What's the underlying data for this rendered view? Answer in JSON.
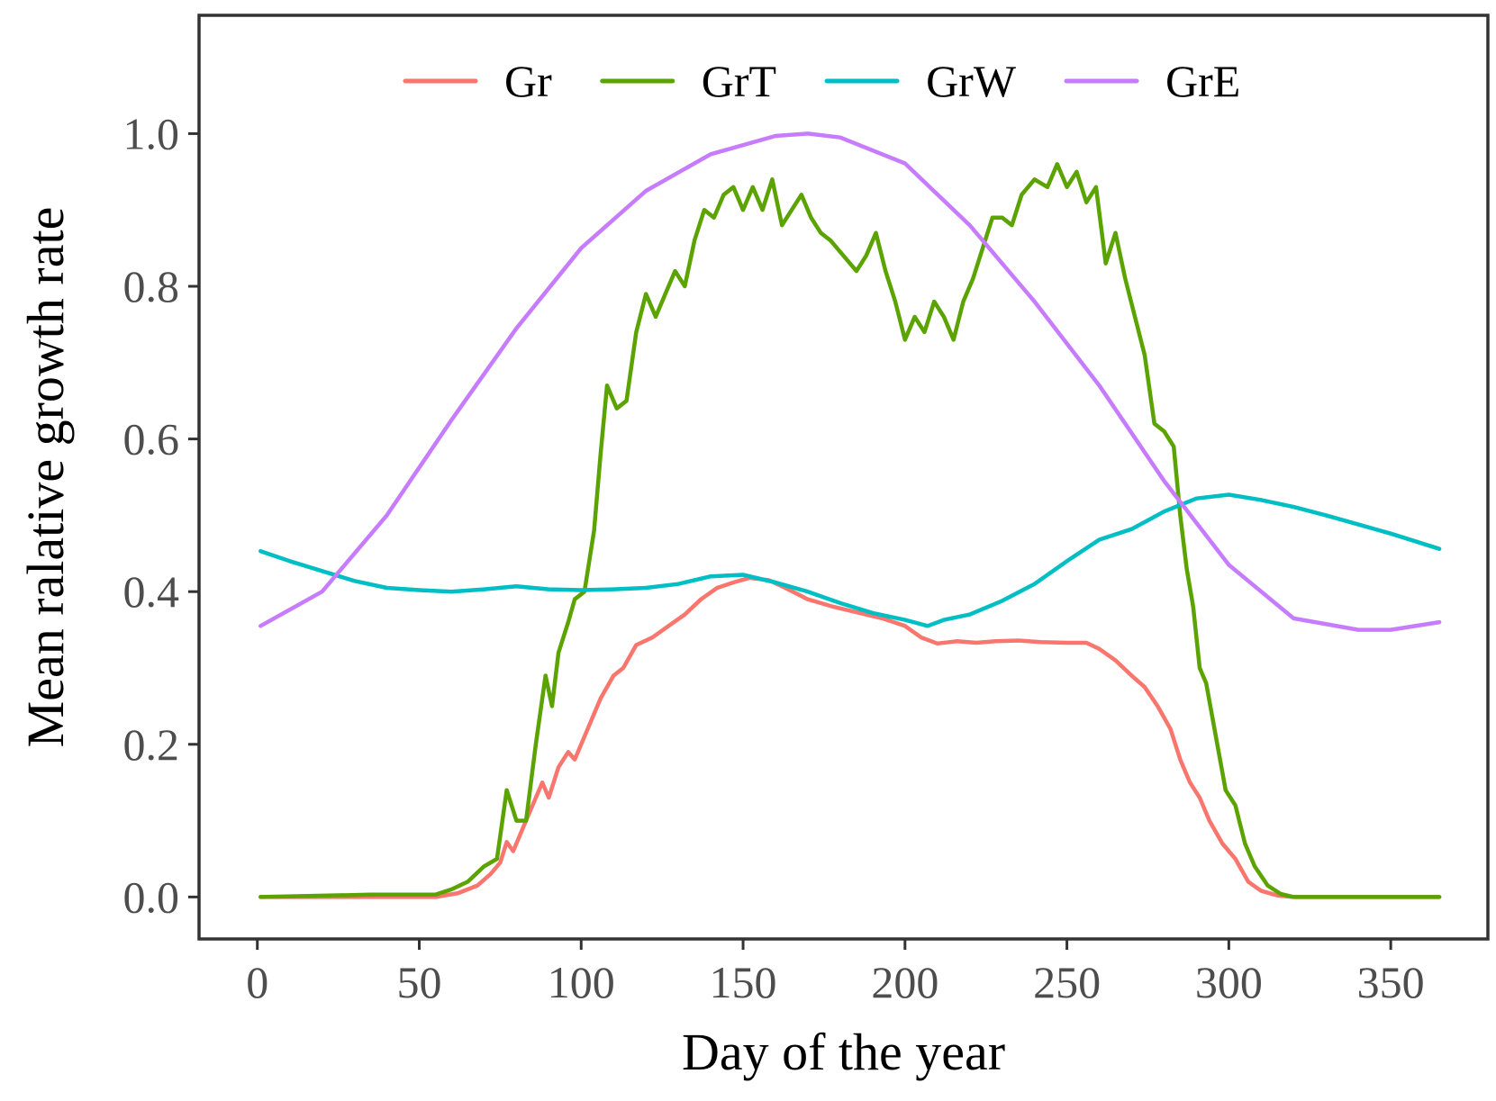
{
  "chart_data": {
    "type": "line",
    "title": "",
    "xlabel": "Day of the year",
    "ylabel": "Mean ralative growth rate",
    "xlim": [
      -18,
      380
    ],
    "ylim": [
      -0.055,
      1.155
    ],
    "x_ticks": [
      0,
      50,
      100,
      150,
      200,
      250,
      300,
      350
    ],
    "x_tick_labels": [
      "0",
      "50",
      "100",
      "150",
      "200",
      "250",
      "300",
      "350"
    ],
    "y_ticks": [
      0.0,
      0.2,
      0.4,
      0.6,
      0.8,
      1.0
    ],
    "y_tick_labels": [
      "0.0",
      "0.2",
      "0.4",
      "0.6",
      "0.8",
      "1.0"
    ],
    "grid": false,
    "legend_position": "top",
    "series": [
      {
        "name": "Gr",
        "color": "#f8766d",
        "points": [
          [
            1,
            0
          ],
          [
            55,
            0
          ],
          [
            62,
            0.005
          ],
          [
            68,
            0.015
          ],
          [
            72,
            0.03
          ],
          [
            75,
            0.045
          ],
          [
            77,
            0.072
          ],
          [
            79,
            0.06
          ],
          [
            82,
            0.09
          ],
          [
            85,
            0.12
          ],
          [
            88,
            0.15
          ],
          [
            90,
            0.13
          ],
          [
            93,
            0.17
          ],
          [
            96,
            0.19
          ],
          [
            98,
            0.18
          ],
          [
            100,
            0.2
          ],
          [
            103,
            0.23
          ],
          [
            106,
            0.26
          ],
          [
            110,
            0.29
          ],
          [
            113,
            0.3
          ],
          [
            117,
            0.33
          ],
          [
            122,
            0.34
          ],
          [
            127,
            0.355
          ],
          [
            132,
            0.37
          ],
          [
            137,
            0.39
          ],
          [
            142,
            0.405
          ],
          [
            147,
            0.412
          ],
          [
            152,
            0.418
          ],
          [
            158,
            0.415
          ],
          [
            163,
            0.405
          ],
          [
            170,
            0.39
          ],
          [
            178,
            0.38
          ],
          [
            186,
            0.372
          ],
          [
            193,
            0.365
          ],
          [
            200,
            0.355
          ],
          [
            205,
            0.34
          ],
          [
            210,
            0.332
          ],
          [
            216,
            0.335
          ],
          [
            222,
            0.333
          ],
          [
            228,
            0.335
          ],
          [
            235,
            0.336
          ],
          [
            242,
            0.334
          ],
          [
            250,
            0.333
          ],
          [
            256,
            0.333
          ],
          [
            260,
            0.325
          ],
          [
            265,
            0.31
          ],
          [
            270,
            0.29
          ],
          [
            274,
            0.275
          ],
          [
            278,
            0.25
          ],
          [
            282,
            0.22
          ],
          [
            285,
            0.18
          ],
          [
            288,
            0.15
          ],
          [
            291,
            0.13
          ],
          [
            294,
            0.1
          ],
          [
            298,
            0.07
          ],
          [
            302,
            0.05
          ],
          [
            306,
            0.02
          ],
          [
            310,
            0.008
          ],
          [
            315,
            0.002
          ],
          [
            320,
            0
          ],
          [
            365,
            0
          ]
        ]
      },
      {
        "name": "GrT",
        "color": "#5ba300",
        "points": [
          [
            1,
            0
          ],
          [
            35,
            0.003
          ],
          [
            55,
            0.003
          ],
          [
            60,
            0.01
          ],
          [
            65,
            0.02
          ],
          [
            70,
            0.04
          ],
          [
            74,
            0.05
          ],
          [
            77,
            0.14
          ],
          [
            80,
            0.1
          ],
          [
            83,
            0.1
          ],
          [
            86,
            0.2
          ],
          [
            89,
            0.29
          ],
          [
            91,
            0.25
          ],
          [
            93,
            0.32
          ],
          [
            96,
            0.36
          ],
          [
            98,
            0.39
          ],
          [
            101,
            0.4
          ],
          [
            104,
            0.48
          ],
          [
            106,
            0.58
          ],
          [
            108,
            0.67
          ],
          [
            111,
            0.64
          ],
          [
            114,
            0.65
          ],
          [
            117,
            0.74
          ],
          [
            120,
            0.79
          ],
          [
            123,
            0.76
          ],
          [
            126,
            0.79
          ],
          [
            129,
            0.82
          ],
          [
            132,
            0.8
          ],
          [
            135,
            0.86
          ],
          [
            138,
            0.9
          ],
          [
            141,
            0.89
          ],
          [
            144,
            0.92
          ],
          [
            147,
            0.93
          ],
          [
            150,
            0.9
          ],
          [
            153,
            0.93
          ],
          [
            156,
            0.9
          ],
          [
            159,
            0.94
          ],
          [
            162,
            0.88
          ],
          [
            165,
            0.9
          ],
          [
            168,
            0.92
          ],
          [
            171,
            0.89
          ],
          [
            174,
            0.87
          ],
          [
            177,
            0.86
          ],
          [
            181,
            0.84
          ],
          [
            185,
            0.82
          ],
          [
            188,
            0.84
          ],
          [
            191,
            0.87
          ],
          [
            194,
            0.82
          ],
          [
            197,
            0.78
          ],
          [
            200,
            0.73
          ],
          [
            203,
            0.76
          ],
          [
            206,
            0.74
          ],
          [
            209,
            0.78
          ],
          [
            212,
            0.76
          ],
          [
            215,
            0.73
          ],
          [
            218,
            0.78
          ],
          [
            221,
            0.81
          ],
          [
            224,
            0.85
          ],
          [
            227,
            0.89
          ],
          [
            230,
            0.89
          ],
          [
            233,
            0.88
          ],
          [
            236,
            0.92
          ],
          [
            240,
            0.94
          ],
          [
            244,
            0.93
          ],
          [
            247,
            0.96
          ],
          [
            250,
            0.93
          ],
          [
            253,
            0.95
          ],
          [
            256,
            0.91
          ],
          [
            259,
            0.93
          ],
          [
            262,
            0.83
          ],
          [
            265,
            0.87
          ],
          [
            268,
            0.81
          ],
          [
            271,
            0.76
          ],
          [
            274,
            0.71
          ],
          [
            277,
            0.62
          ],
          [
            280,
            0.61
          ],
          [
            283,
            0.59
          ],
          [
            285,
            0.5
          ],
          [
            287,
            0.43
          ],
          [
            289,
            0.38
          ],
          [
            291,
            0.3
          ],
          [
            293,
            0.28
          ],
          [
            296,
            0.21
          ],
          [
            299,
            0.14
          ],
          [
            302,
            0.12
          ],
          [
            305,
            0.07
          ],
          [
            308,
            0.04
          ],
          [
            312,
            0.015
          ],
          [
            316,
            0.004
          ],
          [
            320,
            0
          ],
          [
            365,
            0
          ]
        ]
      },
      {
        "name": "GrW",
        "color": "#00bfc4",
        "points": [
          [
            1,
            0.453
          ],
          [
            10,
            0.44
          ],
          [
            20,
            0.427
          ],
          [
            30,
            0.414
          ],
          [
            40,
            0.405
          ],
          [
            50,
            0.402
          ],
          [
            60,
            0.4
          ],
          [
            70,
            0.403
          ],
          [
            80,
            0.407
          ],
          [
            90,
            0.403
          ],
          [
            100,
            0.402
          ],
          [
            110,
            0.403
          ],
          [
            120,
            0.405
          ],
          [
            130,
            0.41
          ],
          [
            140,
            0.42
          ],
          [
            150,
            0.422
          ],
          [
            160,
            0.412
          ],
          [
            170,
            0.4
          ],
          [
            180,
            0.385
          ],
          [
            190,
            0.372
          ],
          [
            200,
            0.363
          ],
          [
            207,
            0.355
          ],
          [
            212,
            0.363
          ],
          [
            220,
            0.37
          ],
          [
            230,
            0.388
          ],
          [
            240,
            0.41
          ],
          [
            250,
            0.44
          ],
          [
            260,
            0.468
          ],
          [
            270,
            0.482
          ],
          [
            280,
            0.505
          ],
          [
            290,
            0.522
          ],
          [
            300,
            0.527
          ],
          [
            310,
            0.52
          ],
          [
            320,
            0.511
          ],
          [
            330,
            0.5
          ],
          [
            340,
            0.488
          ],
          [
            350,
            0.476
          ],
          [
            365,
            0.456
          ]
        ]
      },
      {
        "name": "GrE",
        "color": "#c77cff",
        "points": [
          [
            1,
            0.355
          ],
          [
            20,
            0.4
          ],
          [
            40,
            0.5
          ],
          [
            60,
            0.625
          ],
          [
            80,
            0.745
          ],
          [
            100,
            0.85
          ],
          [
            120,
            0.925
          ],
          [
            140,
            0.973
          ],
          [
            160,
            0.997
          ],
          [
            170,
            1.0
          ],
          [
            180,
            0.995
          ],
          [
            200,
            0.961
          ],
          [
            220,
            0.88
          ],
          [
            240,
            0.78
          ],
          [
            260,
            0.67
          ],
          [
            280,
            0.545
          ],
          [
            300,
            0.435
          ],
          [
            320,
            0.365
          ],
          [
            340,
            0.35
          ],
          [
            350,
            0.35
          ],
          [
            365,
            0.36
          ]
        ]
      }
    ]
  }
}
